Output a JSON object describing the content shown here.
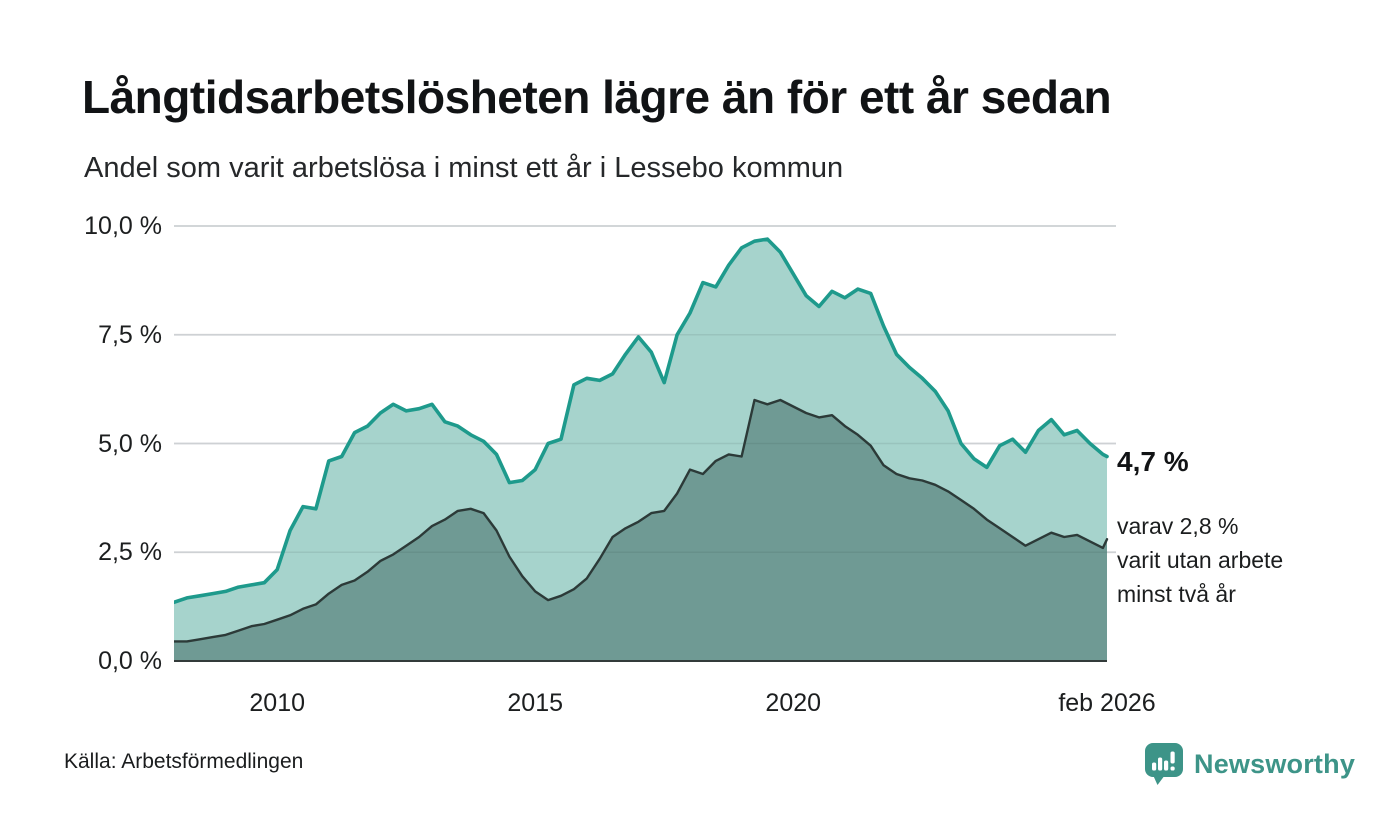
{
  "header": {
    "title": "Långtidsarbetslösheten lägre än för ett år sedan",
    "subtitle": "Andel som varit arbetslösa i minst ett år i Lessebo kommun"
  },
  "annotation": {
    "value": "4,7 %",
    "sub": [
      "varav 2,8 %",
      "varit utan arbete",
      "minst två år"
    ]
  },
  "footer": {
    "source": "Källa: Arbetsförmedlingen",
    "brand": "Newsworthy"
  },
  "colors": {
    "total_line": "#1E9A8C",
    "total_fill": "#A6D3CC",
    "two_plus_line": "#2C3A38",
    "two_plus_fill": "#6F9A94",
    "grid": "#E1E3E6",
    "grid_overlay": "rgba(40,60,60,0.10)",
    "axis_line": "#333B3A",
    "brand_teal": "#3D9488",
    "text_dark": "#111315"
  },
  "chart_data": {
    "type": "area",
    "title": "Långtidsarbetslösheten lägre än för ett år sedan",
    "subtitle": "Andel som varit arbetslösa i minst ett år i Lessebo kommun",
    "unit": "%",
    "x_range": [
      2008.0,
      2026.08
    ],
    "ylim": [
      0,
      10
    ],
    "grid": true,
    "y_ticks": [
      {
        "label": "10,0 %",
        "value": 10.0
      },
      {
        "label": "7,5 %",
        "value": 7.5
      },
      {
        "label": "5,0 %",
        "value": 5.0
      },
      {
        "label": "2,5 %",
        "value": 2.5
      },
      {
        "label": "0,0 %",
        "value": 0.0
      }
    ],
    "x_ticks": [
      {
        "label": "2010",
        "x": 2010
      },
      {
        "label": "2015",
        "x": 2015
      },
      {
        "label": "2020",
        "x": 2020
      },
      {
        "label": "feb 2026",
        "x": 2026.08
      }
    ],
    "x": [
      2008.0,
      2008.25,
      2008.5,
      2008.75,
      2009.0,
      2009.25,
      2009.5,
      2009.75,
      2010.0,
      2010.25,
      2010.5,
      2010.75,
      2011.0,
      2011.25,
      2011.5,
      2011.75,
      2012.0,
      2012.25,
      2012.5,
      2012.75,
      2013.0,
      2013.25,
      2013.5,
      2013.75,
      2014.0,
      2014.25,
      2014.5,
      2014.75,
      2015.0,
      2015.25,
      2015.5,
      2015.75,
      2016.0,
      2016.25,
      2016.5,
      2016.75,
      2017.0,
      2017.25,
      2017.5,
      2017.75,
      2018.0,
      2018.25,
      2018.5,
      2018.75,
      2019.0,
      2019.25,
      2019.5,
      2019.75,
      2020.0,
      2020.25,
      2020.5,
      2020.75,
      2021.0,
      2021.25,
      2021.5,
      2021.75,
      2022.0,
      2022.25,
      2022.5,
      2022.75,
      2023.0,
      2023.25,
      2023.5,
      2023.75,
      2024.0,
      2024.25,
      2024.5,
      2024.75,
      2025.0,
      2025.25,
      2025.5,
      2025.75,
      2026.0,
      2026.08
    ],
    "series": [
      {
        "name": "arbetslösa minst ett år",
        "end_label": "4,7 %",
        "line_color": "#1E9A8C",
        "fill_color": "#A6D3CC",
        "values": [
          1.35,
          1.45,
          1.5,
          1.55,
          1.6,
          1.7,
          1.75,
          1.8,
          2.1,
          3.0,
          3.55,
          3.5,
          4.6,
          4.7,
          5.25,
          5.4,
          5.7,
          5.9,
          5.75,
          5.8,
          5.9,
          5.5,
          5.4,
          5.2,
          5.05,
          4.75,
          4.1,
          4.15,
          4.4,
          5.0,
          5.1,
          6.35,
          6.5,
          6.45,
          6.6,
          7.05,
          7.45,
          7.1,
          6.4,
          7.5,
          8.0,
          8.7,
          8.6,
          9.1,
          9.5,
          9.65,
          9.7,
          9.4,
          8.9,
          8.4,
          8.15,
          8.5,
          8.35,
          8.55,
          8.45,
          7.7,
          7.05,
          6.75,
          6.5,
          6.2,
          5.75,
          5.0,
          4.65,
          4.45,
          4.95,
          5.1,
          4.8,
          5.3,
          5.55,
          5.2,
          5.3,
          5.0,
          4.75,
          4.7
        ]
      },
      {
        "name": "varit utan arbete minst två år",
        "end_label": "2,8 %",
        "line_color": "#2C3A38",
        "fill_color": "#6F9A94",
        "values": [
          0.45,
          0.45,
          0.5,
          0.55,
          0.6,
          0.7,
          0.8,
          0.85,
          0.95,
          1.05,
          1.2,
          1.3,
          1.55,
          1.75,
          1.85,
          2.05,
          2.3,
          2.45,
          2.65,
          2.85,
          3.1,
          3.25,
          3.45,
          3.5,
          3.4,
          3.0,
          2.4,
          1.95,
          1.6,
          1.4,
          1.5,
          1.65,
          1.9,
          2.35,
          2.85,
          3.05,
          3.2,
          3.4,
          3.45,
          3.85,
          4.4,
          4.3,
          4.6,
          4.75,
          4.7,
          6.0,
          5.9,
          6.0,
          5.85,
          5.7,
          5.6,
          5.65,
          5.4,
          5.2,
          4.95,
          4.5,
          4.3,
          4.2,
          4.15,
          4.05,
          3.9,
          3.7,
          3.5,
          3.25,
          3.05,
          2.85,
          2.65,
          2.8,
          2.95,
          2.85,
          2.9,
          2.75,
          2.6,
          2.8
        ]
      }
    ]
  }
}
